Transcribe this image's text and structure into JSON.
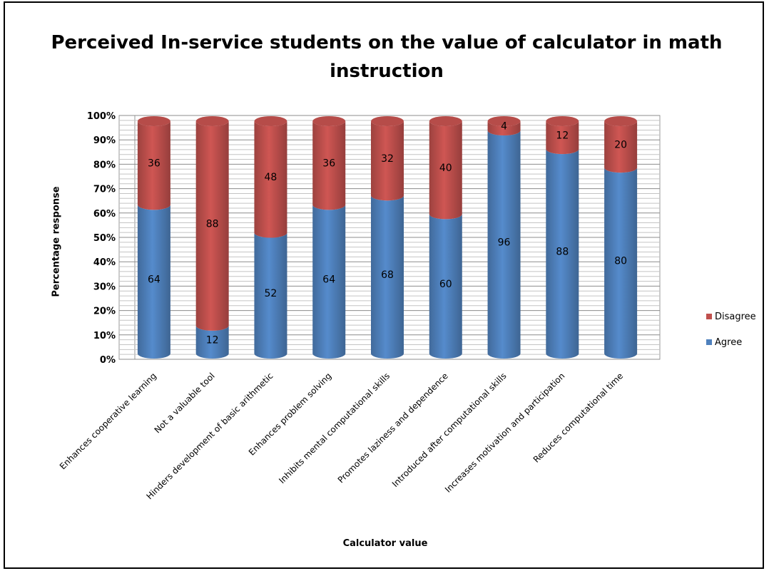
{
  "chart_data": {
    "type": "bar",
    "stacked": true,
    "percent_stacked": true,
    "title": "Perceived In-service students on the value of calculator in math instruction",
    "xlabel": "Calculator value",
    "ylabel": "Percentage response",
    "ylim": [
      0,
      100
    ],
    "yticks": [
      "0%",
      "10%",
      "20%",
      "30%",
      "40%",
      "50%",
      "60%",
      "70%",
      "80%",
      "90%",
      "100%"
    ],
    "grid": true,
    "legend_position": "right",
    "categories": [
      "Enhances cooperative learning",
      "Not a valuable tool",
      "Hinders development of basic arithmetic",
      "Enhances problem solving",
      "Inhibits mental computational skills",
      "Promotes laziness and dependence",
      "Introduced after computational skills",
      "Increases motivation and participation",
      "Reduces computational time"
    ],
    "series": [
      {
        "name": "Agree",
        "color": "#4F81BD",
        "values": [
          64,
          12,
          52,
          64,
          68,
          60,
          96,
          88,
          80
        ]
      },
      {
        "name": "Disagree",
        "color": "#C0504D",
        "values": [
          36,
          88,
          48,
          36,
          32,
          40,
          4,
          12,
          20
        ]
      }
    ],
    "legend": [
      {
        "name": "Disagree",
        "color": "#C0504D"
      },
      {
        "name": "Agree",
        "color": "#4F81BD"
      }
    ]
  }
}
